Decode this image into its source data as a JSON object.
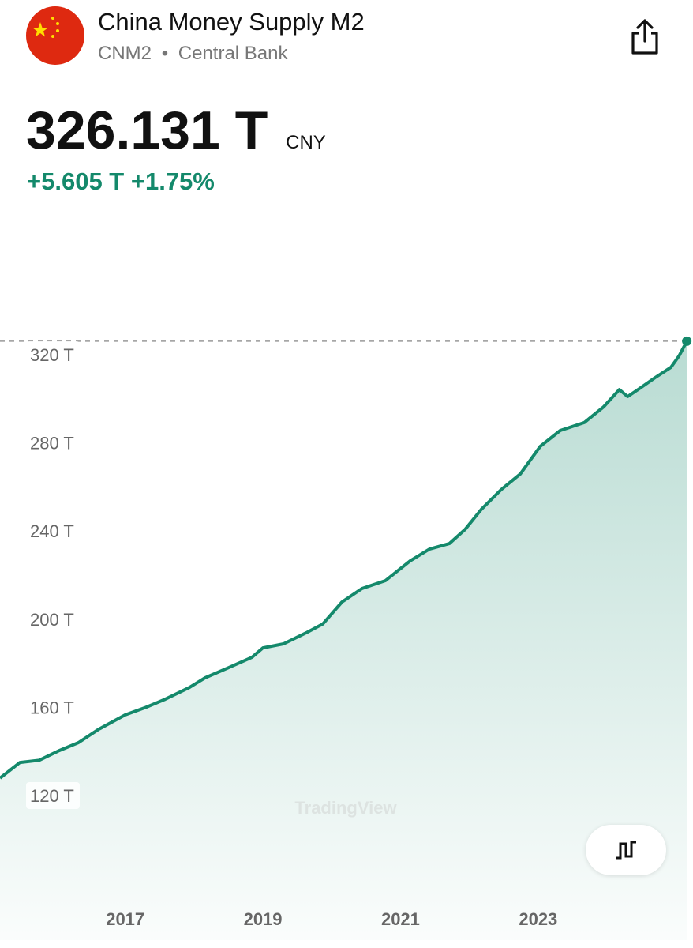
{
  "header": {
    "title": "China Money Supply M2",
    "symbol": "CNM2",
    "source": "Central Bank",
    "price": "326.131 T",
    "currency": "CNY",
    "change": "+5.605 T",
    "change_percent": "+1.75%"
  },
  "chart_data": {
    "type": "area",
    "watermark": "TradingView",
    "x": [
      2015.18,
      2015.47,
      2015.75,
      2016.04,
      2016.32,
      2016.61,
      2017.0,
      2017.3,
      2017.58,
      2017.93,
      2018.16,
      2018.5,
      2018.84,
      2019.0,
      2019.3,
      2019.64,
      2019.87,
      2020.15,
      2020.44,
      2020.78,
      2021.14,
      2021.42,
      2021.71,
      2021.94,
      2022.17,
      2022.46,
      2022.74,
      2023.03,
      2023.32,
      2023.67,
      2023.95,
      2024.18,
      2024.3,
      2024.47,
      2024.7,
      2024.93,
      2025.05,
      2025.16
    ],
    "series": [
      {
        "name": "CNM2",
        "color": "#14896b",
        "values": [
          127.9,
          135,
          136,
          140.4,
          144,
          150,
          156.6,
          160,
          163.7,
          169,
          173.4,
          178,
          182.7,
          187,
          188.8,
          194,
          197.8,
          207.8,
          213.9,
          217.5,
          226.5,
          231.8,
          234.3,
          240.8,
          249.7,
          258.7,
          265.9,
          278.4,
          285.6,
          289.2,
          296.3,
          304.2,
          301,
          304.6,
          309.6,
          314.3,
          319.6,
          326.131
        ]
      }
    ],
    "xlim": [
      2015.18,
      2025.25
    ],
    "xticks": [
      2017,
      2019,
      2021,
      2023
    ],
    "ylim": [
      54.4,
      330.4
    ],
    "yticks": [
      {
        "value": 120,
        "label": "120 T"
      },
      {
        "value": 160,
        "label": "160 T"
      },
      {
        "value": 200,
        "label": "200 T"
      },
      {
        "value": 240,
        "label": "240 T"
      },
      {
        "value": 280,
        "label": "280 T"
      },
      {
        "value": 320,
        "label": "320 T"
      }
    ]
  }
}
